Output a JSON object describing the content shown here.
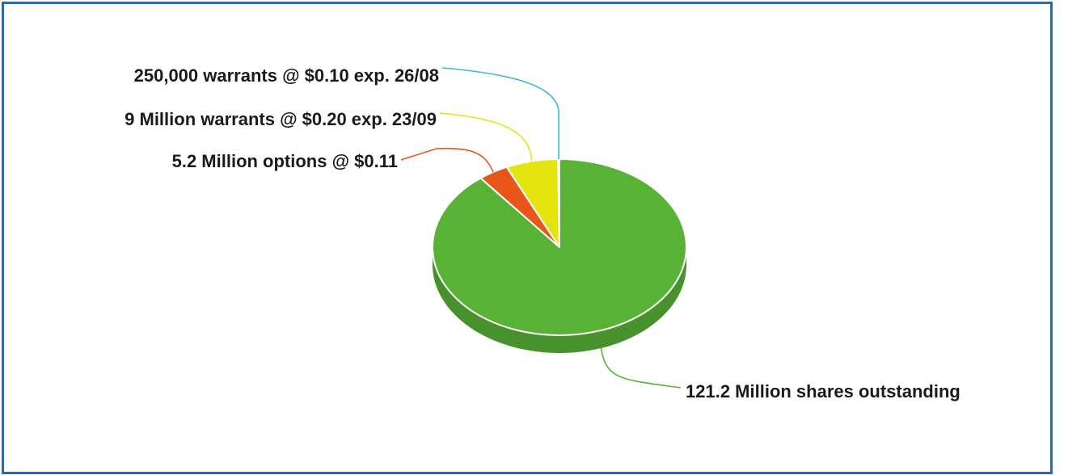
{
  "chart_data": {
    "type": "pie",
    "style": "3d",
    "categories": [
      "121.2 Million shares outstanding",
      "5.2 Million options @ $0.11",
      "9 Million warrants @ $0.20 exp. 23/09",
      "250,000 warrants @ $0.10 exp. 26/08"
    ],
    "values": [
      121.2,
      5.2,
      9,
      0.25
    ],
    "colors": [
      "#57b236",
      "#e9561c",
      "#e4e50f",
      "#3ab9d6"
    ],
    "title": "",
    "legend": "none"
  }
}
